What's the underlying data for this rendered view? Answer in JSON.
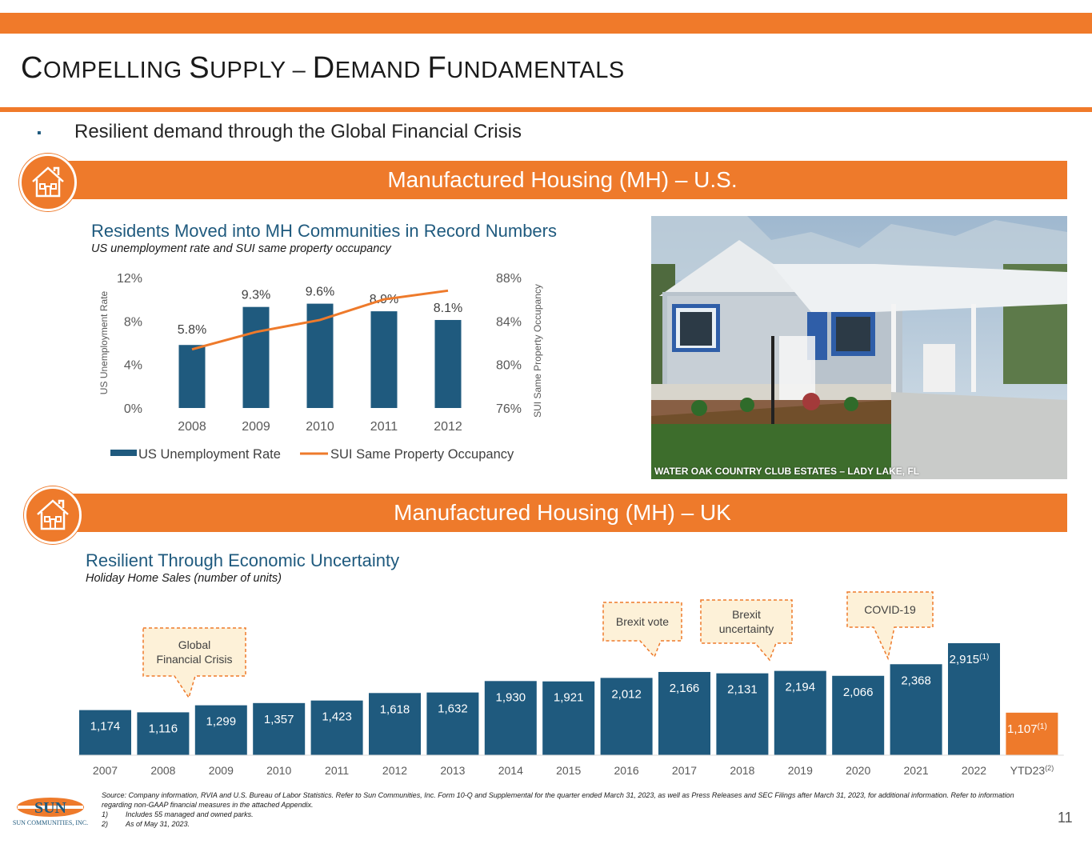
{
  "header": {
    "title_parts": [
      {
        "cap": "C",
        "rest": "OMPELLING "
      },
      {
        "cap": "S",
        "rest": "UPPLY – "
      },
      {
        "cap": "D",
        "rest": "EMAND "
      },
      {
        "cap": "F",
        "rest": "UNDAMENTALS"
      }
    ],
    "bullet_symbol": "▪",
    "bullet_text": "Resilient demand through the Global Financial Crisis"
  },
  "us_section": {
    "band_title": "Manufactured Housing (MH) – U.S.",
    "chart_title": "Residents Moved into MH Communities in Record Numbers",
    "chart_subtitle": "US unemployment rate and SUI same property occupancy",
    "photo_caption": "WATER OAK COUNTRY CLUB ESTATES – LADY LAKE, FL"
  },
  "uk_section": {
    "band_title": "Manufactured Housing (MH) – UK",
    "chart_title": "Resilient Through Economic Uncertainty",
    "chart_subtitle": "Holiday Home Sales (number of units)"
  },
  "chart_data": [
    {
      "type": "bar",
      "title": "Residents Moved into MH Communities in Record Numbers",
      "subtitle": "US unemployment rate and SUI same property occupancy",
      "categories": [
        "2008",
        "2009",
        "2010",
        "2011",
        "2012"
      ],
      "series": [
        {
          "name": "US Unemployment Rate",
          "kind": "bar",
          "axis": "left",
          "values": [
            5.8,
            9.3,
            9.6,
            8.9,
            8.1
          ],
          "labels": [
            "5.8%",
            "9.3%",
            "9.6%",
            "8.9%",
            "8.1%"
          ],
          "color": "#1F5A7E"
        },
        {
          "name": "SUI Same Property Occupancy",
          "kind": "line",
          "axis": "right",
          "values": [
            81.4,
            83.0,
            84.1,
            86.0,
            86.8
          ],
          "color": "#EE7A2B"
        }
      ],
      "ylabel": "US Unemployment Rate",
      "ylim": [
        0,
        12
      ],
      "yticks": [
        "12%",
        "8%",
        "4%",
        "0%"
      ],
      "y2label": "SUI Same Property Occupancy",
      "y2lim": [
        76,
        88
      ],
      "y2ticks": [
        "88%",
        "84%",
        "80%",
        "76%"
      ],
      "legend": "bottom"
    },
    {
      "type": "bar",
      "title": "Resilient Through Economic Uncertainty",
      "subtitle": "Holiday Home Sales (number of units)",
      "categories": [
        "2007",
        "2008",
        "2009",
        "2010",
        "2011",
        "2012",
        "2013",
        "2014",
        "2015",
        "2016",
        "2017",
        "2018",
        "2019",
        "2020",
        "2021",
        "2022",
        "YTD23"
      ],
      "category_suffix": {
        "YTD23": "(2)"
      },
      "values": [
        1174,
        1116,
        1299,
        1357,
        1423,
        1618,
        1632,
        1930,
        1921,
        2012,
        2166,
        2131,
        2194,
        2066,
        2368,
        2915,
        1107
      ],
      "labels": [
        "1,174",
        "1,116",
        "1,299",
        "1,357",
        "1,423",
        "1,618",
        "1,632",
        "1,930",
        "1,921",
        "2,012",
        "2,166",
        "2,131",
        "2,194",
        "2,066",
        "2,368",
        "2,915",
        "1,107"
      ],
      "label_suffix": {
        "2022": "(1)",
        "YTD23": "(1)"
      },
      "bar_color": "#1F5A7E",
      "highlight_color": "#EE7A2B",
      "highlight_category": "YTD23",
      "annotations": [
        {
          "text": [
            "Global",
            "Financial Crisis"
          ],
          "points_to": "2009"
        },
        {
          "text": [
            "Brexit vote"
          ],
          "points_to": "2016"
        },
        {
          "text": [
            "Brexit",
            "uncertainty"
          ],
          "points_to": "2018"
        },
        {
          "text": [
            "COVID-19"
          ],
          "points_to": "2021"
        }
      ]
    }
  ],
  "footer": {
    "source": "Source: Company information, RVIA and U.S. Bureau of Labor Statistics. Refer to Sun Communities, Inc. Form 10-Q and Supplemental for the quarter ended March 31, 2023, as well as Press Releases and SEC Filings after March 31, 2023, for additional information. Refer to information regarding non-GAAP financial measures in the attached Appendix.",
    "notes": [
      {
        "num": "1)",
        "text": "Includes 55 managed and owned parks."
      },
      {
        "num": "2)",
        "text": "As of May 31, 2023."
      }
    ],
    "page_number": "11",
    "logo_text": "SUN",
    "logo_subtext": "SUN COMMUNITIES, INC."
  },
  "colors": {
    "orange": "#EE7A2B",
    "navy": "#1F5A7E"
  }
}
